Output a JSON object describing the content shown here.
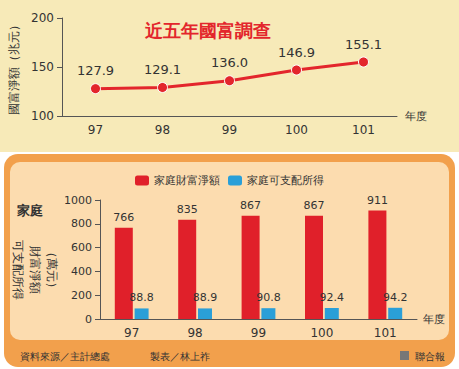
{
  "chart_data": [
    {
      "type": "line",
      "title": "近五年國富調查",
      "ylabel": "國富淨額（兆元）",
      "xlabel": "年度",
      "categories": [
        "97",
        "98",
        "99",
        "100",
        "101"
      ],
      "values": [
        127.9,
        129.1,
        136.0,
        146.9,
        155.1
      ],
      "value_labels": [
        "127.9",
        "129.1",
        "136.0",
        "146.9",
        "155.1"
      ],
      "color": "#e3262c",
      "marker": "circle",
      "ylim": [
        100,
        200
      ],
      "yticks": [
        100,
        150,
        200
      ],
      "grid": false,
      "data_labels": true
    },
    {
      "type": "bar",
      "ylabel": [
        "家庭",
        "可支配所得",
        "財富淨額",
        "（萬元）"
      ],
      "xlabel": "年度",
      "categories": [
        "97",
        "98",
        "99",
        "100",
        "101"
      ],
      "series": [
        {
          "name": "家庭財富淨額",
          "color": "#e0202a",
          "values": [
            766,
            835,
            867,
            867,
            911
          ]
        },
        {
          "name": "家庭可支配所得",
          "color": "#2a9fd8",
          "values": [
            88.8,
            88.9,
            90.8,
            92.4,
            94.2
          ]
        }
      ],
      "ylim": [
        0,
        1000
      ],
      "yticks": [
        0,
        200,
        400,
        600,
        800,
        1000
      ],
      "grid": false,
      "legend": "top",
      "data_labels": true,
      "annotations": [
        "資料來源／主計總處",
        "製表／林上祚",
        "聯合報"
      ]
    }
  ]
}
